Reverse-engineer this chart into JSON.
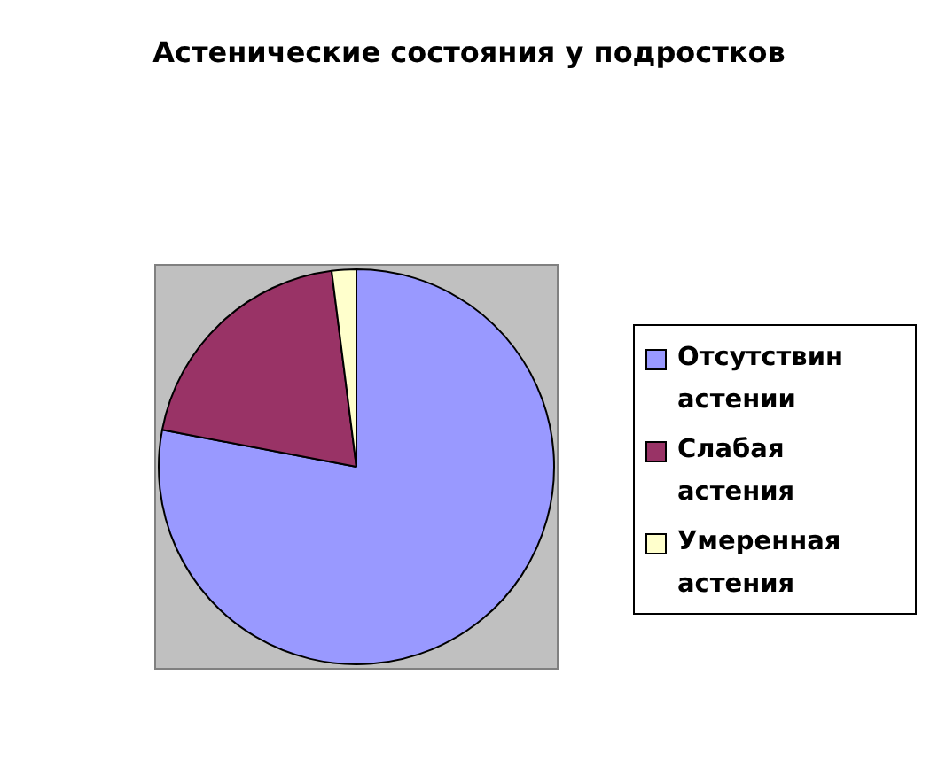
{
  "chart_data": {
    "type": "pie",
    "title": "Астенические состояния у подростков",
    "categories": [
      "Отсутствин астении",
      "Слабая астения",
      "Умеренная астения"
    ],
    "values": [
      78,
      20,
      2
    ],
    "colors": [
      "#9999ff",
      "#993366",
      "#ffffcc"
    ],
    "legend": "right"
  }
}
